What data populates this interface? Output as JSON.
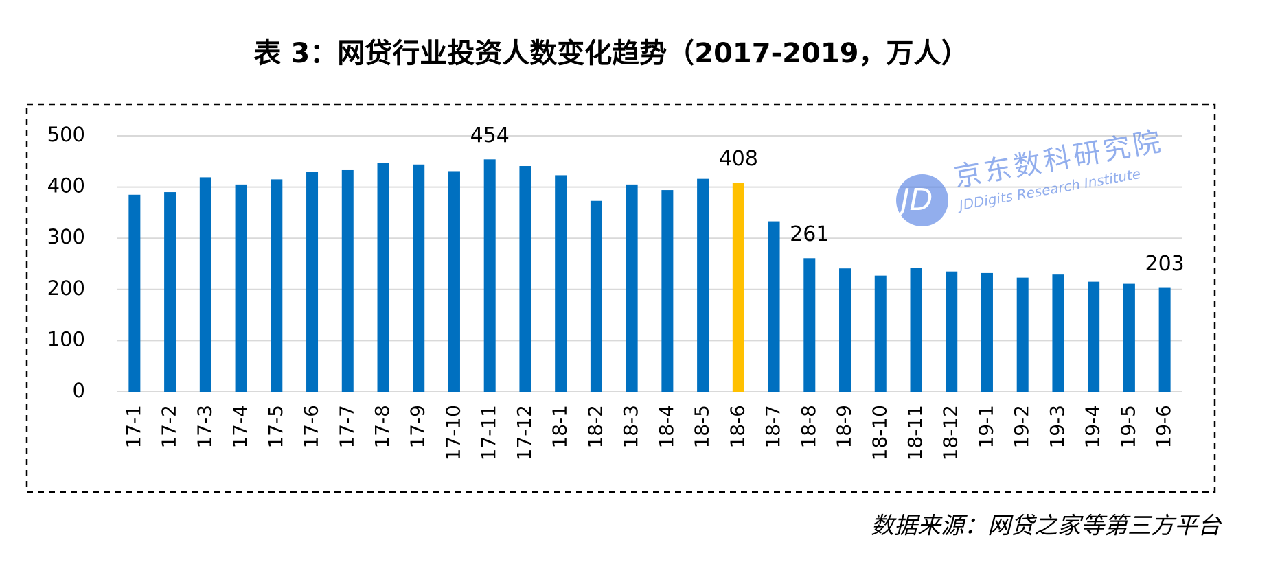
{
  "chart_data": {
    "type": "bar",
    "title": "表 3：网贷行业投资人数变化趋势（2017-2019，万人）",
    "categories": [
      "17-1",
      "17-2",
      "17-3",
      "17-4",
      "17-5",
      "17-6",
      "17-7",
      "17-8",
      "17-9",
      "17-10",
      "17-11",
      "17-12",
      "18-1",
      "18-2",
      "18-3",
      "18-4",
      "18-5",
      "18-6",
      "18-7",
      "18-8",
      "18-9",
      "18-10",
      "18-11",
      "18-12",
      "19-1",
      "19-2",
      "19-3",
      "19-4",
      "19-5",
      "19-6"
    ],
    "values": [
      385,
      390,
      419,
      405,
      415,
      430,
      433,
      447,
      444,
      431,
      454,
      441,
      423,
      373,
      405,
      394,
      416,
      408,
      333,
      261,
      241,
      227,
      242,
      235,
      232,
      223,
      229,
      215,
      211,
      203
    ],
    "value_labels": [
      null,
      null,
      null,
      null,
      null,
      null,
      null,
      null,
      null,
      null,
      "454",
      null,
      null,
      null,
      null,
      null,
      null,
      "408",
      null,
      "261",
      null,
      null,
      null,
      null,
      null,
      null,
      null,
      null,
      null,
      "203"
    ],
    "colors": [
      "#0070c0",
      "#0070c0",
      "#0070c0",
      "#0070c0",
      "#0070c0",
      "#0070c0",
      "#0070c0",
      "#0070c0",
      "#0070c0",
      "#0070c0",
      "#0070c0",
      "#0070c0",
      "#0070c0",
      "#0070c0",
      "#0070c0",
      "#0070c0",
      "#0070c0",
      "#ffc000",
      "#0070c0",
      "#0070c0",
      "#0070c0",
      "#0070c0",
      "#0070c0",
      "#0070c0",
      "#0070c0",
      "#0070c0",
      "#0070c0",
      "#0070c0",
      "#0070c0",
      "#0070c0"
    ],
    "ylim": [
      0,
      500
    ],
    "yticks": [
      0,
      100,
      200,
      300,
      400,
      500
    ],
    "grid": true,
    "watermark": {
      "title": "京东数科研究院",
      "subtitle": "JDDigits Research Institute"
    },
    "source": "数据来源：网贷之家等第三方平台"
  }
}
